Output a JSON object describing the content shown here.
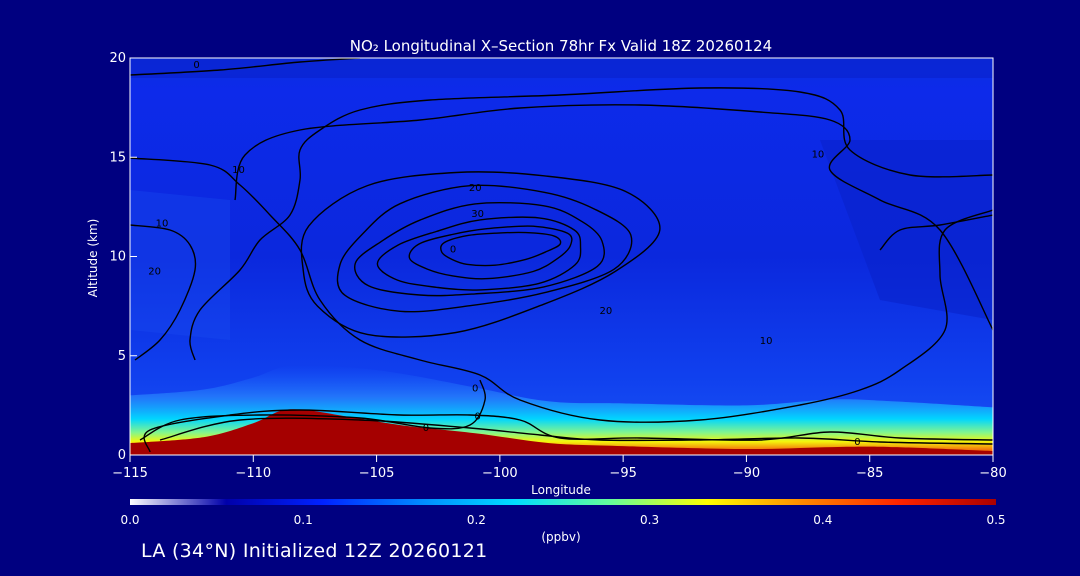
{
  "chart_data": {
    "type": "heatmap",
    "title": "NO₂ Longitudinal X–Section 78hr  Fx Valid 18Z 20260124",
    "xlabel": "Longitude",
    "ylabel": "Altitude (km)",
    "xlim": [
      -115,
      -80
    ],
    "ylim": [
      0,
      20
    ],
    "xticks": [
      -115,
      -110,
      -105,
      -100,
      -95,
      -90,
      -85,
      -80
    ],
    "xtick_labels": [
      "−115",
      "−110",
      "−105",
      "−100",
      "−95",
      "−90",
      "−85",
      "−80"
    ],
    "yticks": [
      0,
      5,
      10,
      15,
      20
    ],
    "ytick_labels": [
      "0",
      "5",
      "10",
      "15",
      "20"
    ],
    "colorbar": {
      "label": "(ppbv)",
      "range": [
        0.0,
        0.5
      ],
      "tick_values": [
        0.0,
        0.1,
        0.2,
        0.3,
        0.4,
        0.5
      ],
      "tick_labels": [
        "0.0",
        "0.1",
        "0.2",
        "0.3",
        "0.4",
        "0.5"
      ],
      "colors": [
        "#ffffff",
        "#0000aa",
        "#0022ff",
        "#0088ff",
        "#00ddff",
        "#66ff99",
        "#ffff00",
        "#ff8800",
        "#ff2200",
        "#aa0000"
      ]
    },
    "terrain_km": [
      [
        -115,
        0.6
      ],
      [
        -112,
        0.9
      ],
      [
        -110,
        1.6
      ],
      [
        -108.5,
        2.3
      ],
      [
        -106,
        1.9
      ],
      [
        -104,
        1.5
      ],
      [
        -101,
        1.1
      ],
      [
        -98,
        0.6
      ],
      [
        -95,
        0.45
      ],
      [
        -90,
        0.3
      ],
      [
        -86.5,
        0.4
      ],
      [
        -84,
        0.4
      ],
      [
        -80,
        0.2
      ]
    ],
    "surface_layer_top_km": [
      [
        -115,
        1.2
      ],
      [
        -112,
        1.5
      ],
      [
        -110,
        2.1
      ],
      [
        -108.5,
        2.7
      ],
      [
        -106,
        2.6
      ],
      [
        -104,
        2.3
      ],
      [
        -101,
        1.6
      ],
      [
        -98,
        0.9
      ],
      [
        -95,
        0.8
      ],
      [
        -90,
        0.7
      ],
      [
        -86.5,
        1.0
      ],
      [
        -84,
        0.9
      ],
      [
        -80,
        0.6
      ]
    ],
    "contour_labels": [
      {
        "text": "0",
        "x": -112.3,
        "y": 19.5
      },
      {
        "text": "10",
        "x": -110.6,
        "y": 14.2
      },
      {
        "text": "10",
        "x": -113.7,
        "y": 11.5
      },
      {
        "text": "20",
        "x": -114.0,
        "y": 9.1
      },
      {
        "text": "20",
        "x": -101.0,
        "y": 13.3
      },
      {
        "text": "30",
        "x": -100.9,
        "y": 12.0
      },
      {
        "text": "0",
        "x": -101.9,
        "y": 10.2
      },
      {
        "text": "10",
        "x": -87.1,
        "y": 15.0
      },
      {
        "text": "20",
        "x": -95.7,
        "y": 7.1
      },
      {
        "text": "10",
        "x": -89.2,
        "y": 5.6
      },
      {
        "text": "0",
        "x": -101.0,
        "y": 3.2
      },
      {
        "text": "0",
        "x": -100.9,
        "y": 1.8
      },
      {
        "text": "0",
        "x": -103.0,
        "y": 1.2
      },
      {
        "text": "0",
        "x": -85.5,
        "y": 0.5
      }
    ]
  },
  "footer": {
    "text": "LA (34°N) Initialized 12Z 20260121"
  }
}
